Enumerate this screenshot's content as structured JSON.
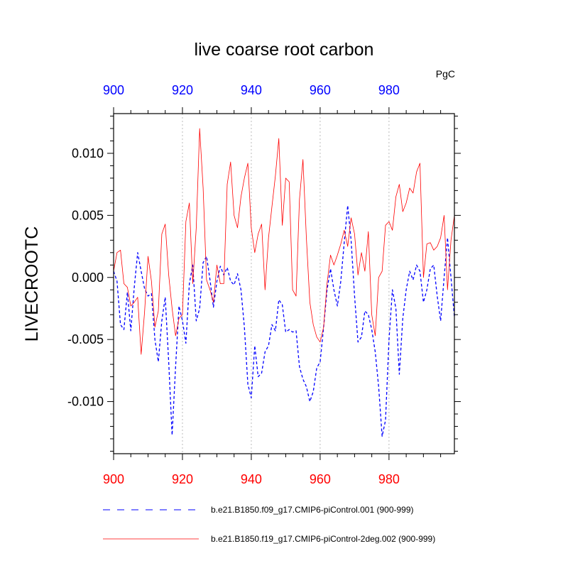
{
  "chart_data": {
    "type": "line",
    "title": "live coarse root carbon",
    "ylabel": "LIVECROOTC",
    "units": "PgC",
    "xlim": [
      900,
      999
    ],
    "ylim": [
      -0.0142,
      0.0132
    ],
    "x_ticks": [
      900,
      920,
      940,
      960,
      980
    ],
    "x_tick_labels": [
      "900",
      "920",
      "940",
      "960",
      "980"
    ],
    "y_ticks": [
      0.01,
      0.005,
      0.0,
      -0.005,
      -0.01
    ],
    "y_tick_labels": [
      "0.010",
      "0.005",
      "0.000",
      "-0.005",
      "-0.010"
    ],
    "top_tick_color": "#0000ff",
    "bottom_tick_color": "#ff0000",
    "grid_color": "#bbbbbb",
    "x": [
      900,
      901,
      902,
      903,
      904,
      905,
      906,
      907,
      908,
      909,
      910,
      911,
      912,
      913,
      914,
      915,
      916,
      917,
      918,
      919,
      920,
      921,
      922,
      923,
      924,
      925,
      926,
      927,
      928,
      929,
      930,
      931,
      932,
      933,
      934,
      935,
      936,
      937,
      938,
      939,
      940,
      941,
      942,
      943,
      944,
      945,
      946,
      947,
      948,
      949,
      950,
      951,
      952,
      953,
      954,
      955,
      956,
      957,
      958,
      959,
      960,
      961,
      962,
      963,
      964,
      965,
      966,
      967,
      968,
      969,
      970,
      971,
      972,
      973,
      974,
      975,
      976,
      977,
      978,
      979,
      980,
      981,
      982,
      983,
      984,
      985,
      986,
      987,
      988,
      989,
      990,
      991,
      992,
      993,
      994,
      995,
      996,
      997,
      998,
      999
    ],
    "series": [
      {
        "name": "b.e21.B1850.f09_g17.CMIP6-piControl.001 (900-999)",
        "color": "#0000ff",
        "dash": "dashed",
        "values": [
          0.0005,
          -0.0003,
          -0.0038,
          -0.0042,
          -0.0012,
          -0.0043,
          -0.0008,
          0.002,
          0.0005,
          -0.0009,
          -0.0015,
          -0.0013,
          -0.005,
          -0.0068,
          -0.0035,
          -0.0016,
          -0.0068,
          -0.0127,
          -0.0072,
          -0.0023,
          -0.0035,
          -0.0053,
          -0.0005,
          0.001,
          -0.0035,
          -0.0025,
          0.0012,
          0.0017,
          -0.0002,
          -0.0024,
          -0.0003,
          0.0009,
          0.0002,
          0.0008,
          -0.0003,
          -0.0006,
          0.0003,
          -0.001,
          -0.004,
          -0.0086,
          -0.0097,
          -0.0055,
          -0.008,
          -0.0077,
          -0.006,
          -0.0055,
          -0.0038,
          -0.0043,
          -0.0018,
          -0.0022,
          -0.0044,
          -0.0042,
          -0.0044,
          -0.0043,
          -0.0072,
          -0.0082,
          -0.0088,
          -0.01,
          -0.0092,
          -0.0073,
          -0.0068,
          -0.004,
          -0.001,
          0.0007,
          -0.001,
          -0.0023,
          -0.0003,
          0.0028,
          0.0058,
          0.003,
          -0.0015,
          -0.0052,
          -0.0048,
          -0.0027,
          -0.003,
          -0.0042,
          -0.006,
          -0.0088,
          -0.0128,
          -0.0115,
          -0.005,
          -0.001,
          -0.0025,
          -0.0078,
          -0.0033,
          -0.001,
          0.0005,
          -0.0002,
          0.001,
          0.0005,
          -0.002,
          -0.001,
          0.0007,
          0.001,
          -0.0015,
          -0.0035,
          0.0,
          0.0032,
          0.0,
          -0.0032
        ]
      },
      {
        "name": "b.e21.B1850.f19_g17.CMIP6-piControl-2deg.002 (900-999)",
        "color": "#ff0000",
        "dash": "solid",
        "values": [
          0.0005,
          0.002,
          0.0022,
          -0.0005,
          -0.0008,
          -0.0023,
          -0.002,
          -0.0016,
          -0.0062,
          -0.0028,
          0.0017,
          -0.0003,
          -0.004,
          -0.0027,
          0.0035,
          0.0043,
          0.0002,
          -0.0025,
          -0.0047,
          -0.0033,
          -0.003,
          0.0045,
          0.006,
          -0.0005,
          0.004,
          0.012,
          0.0072,
          -0.0002,
          -0.001,
          -0.002,
          0.001,
          -0.0005,
          -0.0005,
          0.0075,
          0.0093,
          0.005,
          0.004,
          0.0065,
          0.008,
          0.0092,
          0.004,
          0.002,
          0.0035,
          0.0043,
          -0.001,
          0.0032,
          0.0057,
          0.0082,
          0.0112,
          0.0042,
          0.008,
          0.0077,
          -0.001,
          -0.0015,
          0.0063,
          0.0095,
          0.0032,
          -0.002,
          -0.0038,
          -0.0048,
          -0.0052,
          -0.004,
          -0.0005,
          0.0018,
          0.001,
          0.0018,
          0.0027,
          0.0038,
          0.0025,
          0.0048,
          0.0035,
          0.0002,
          0.002,
          0.0005,
          0.0037,
          -0.003,
          -0.0047,
          0.0,
          0.0005,
          0.0042,
          0.0045,
          0.0038,
          0.0065,
          0.0075,
          0.0053,
          0.006,
          0.0072,
          0.0068,
          0.0085,
          0.0092,
          0.0,
          0.0027,
          0.0028,
          0.0022,
          0.0025,
          0.0032,
          0.005,
          -0.001,
          0.003,
          0.005
        ]
      }
    ]
  }
}
